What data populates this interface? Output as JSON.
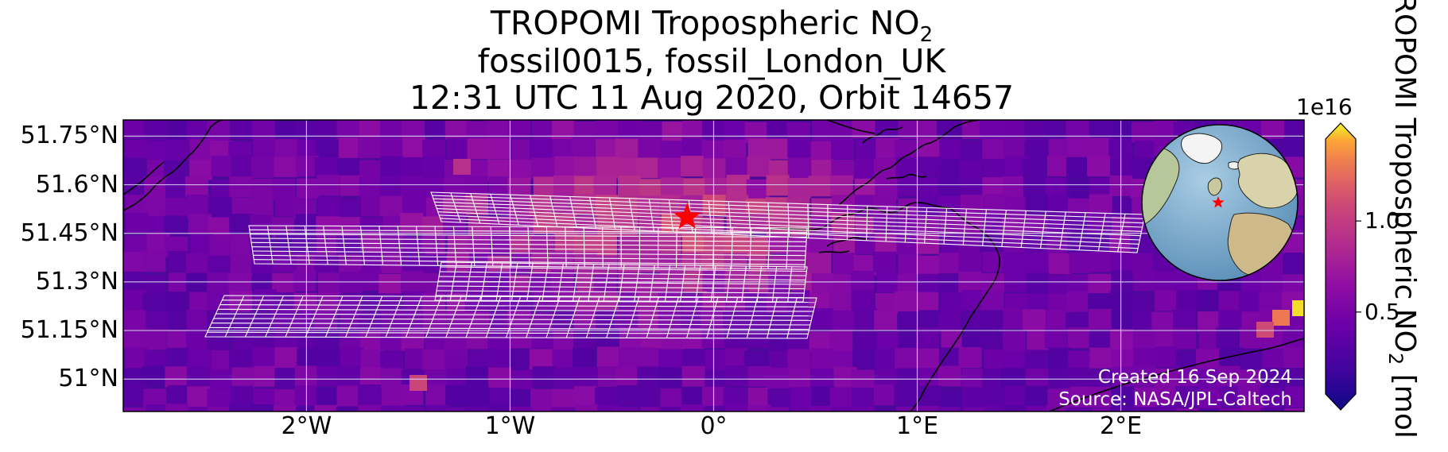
{
  "chart_data": {
    "type": "heatmap",
    "title_lines": [
      "TROPOMI Tropospheric NO",
      "fossil0015, fossil_London_UK",
      "12:31 UTC 11 Aug 2020, Orbit 14657"
    ],
    "title_subscript": "2",
    "lat_ticks": [
      "51.75°N",
      "51.6°N",
      "51.45°N",
      "51.3°N",
      "51.15°N",
      "51°N"
    ],
    "lat_values": [
      51.75,
      51.6,
      51.45,
      51.3,
      51.15,
      51.0
    ],
    "lon_ticks": [
      "2°W",
      "1°W",
      "0°",
      "1°E",
      "2°E"
    ],
    "lon_values": [
      -2,
      -1,
      0,
      1,
      2
    ],
    "lon_range": [
      -2.9,
      2.9
    ],
    "lat_range": [
      50.9,
      51.8
    ],
    "colorbar": {
      "label": "TROPOMI Tropospheric NO",
      "label_subscript": "2",
      "label_suffix": " [mol",
      "exponent": "1e16",
      "ticks": [
        "0.5",
        "1.0"
      ],
      "tick_values": [
        0.5,
        1.0
      ],
      "range": [
        0.05,
        1.45
      ],
      "colormap": "plasma"
    },
    "target_marker": {
      "lon": -0.13,
      "lat": 51.5,
      "label": "London",
      "color": "#ff0000"
    },
    "grid": true,
    "inset": "globe-orthographic"
  },
  "credits": [
    "Created 16 Sep 2024",
    "Source: NASA/JPL-Caltech"
  ],
  "colors": {
    "grid": "#d8d8f0",
    "coast": "#000000",
    "swath": "#ffffff",
    "marker": "#ff0000"
  }
}
